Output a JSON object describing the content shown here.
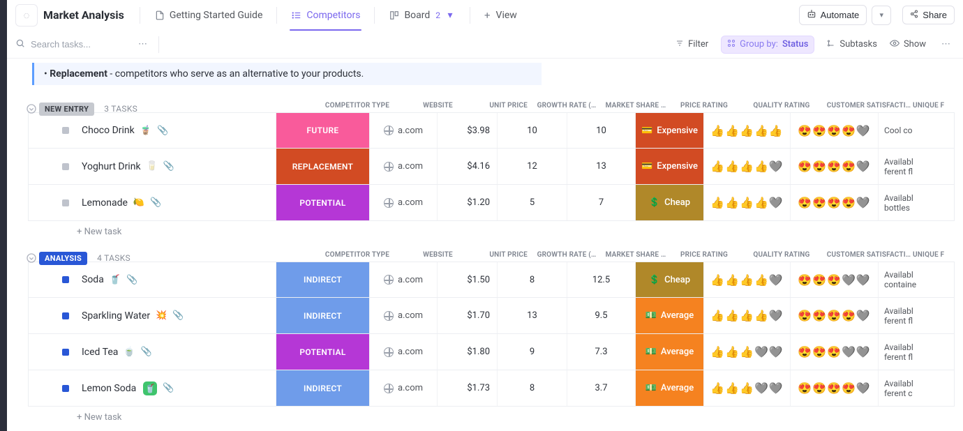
{
  "header": {
    "workspace": "Market Analysis",
    "tabs": [
      {
        "label": "Getting Started Guide"
      },
      {
        "label": "Competitors"
      },
      {
        "label": "Board",
        "count": "2"
      },
      {
        "label": "View"
      }
    ],
    "automate": "Automate",
    "share": "Share"
  },
  "toolbar": {
    "search_placeholder": "Search tasks...",
    "filter": "Filter",
    "group_by_label": "Group by:",
    "group_by_value": "Status",
    "subtasks": "Subtasks",
    "show": "Show"
  },
  "note": {
    "bold": "Replacement",
    "rest": " - competitors who serve as an alternative to your products."
  },
  "columns": [
    "COMPETITOR TYPE",
    "WEBSITE",
    "UNIT PRICE",
    "GROWTH RATE (…",
    "MARKET SHARE …",
    "PRICE RATING",
    "QUALITY RATING",
    "CUSTOMER SATISFACTI…",
    "UNIQUE F"
  ],
  "type_colors": {
    "FUTURE": "#f95b9b",
    "REPLACEMENT": "#d24b23",
    "POTENTIAL": "#b537d6",
    "INDIRECT": "#6f9cea"
  },
  "price_rating_colors": {
    "Expensive": "#d24b23",
    "Cheap": "#b08829",
    "Average": "#f58220"
  },
  "price_rating_icons": {
    "Expensive": "💳",
    "Cheap": "💲",
    "Average": "💵"
  },
  "new_task_label": "+ New task",
  "groups": [
    {
      "name": "NEW ENTRY",
      "pill_bg": "#c6c9cf",
      "pill_text": "#3c3f46",
      "status_color": "#bfc3cc",
      "task_count": "3 TASKS",
      "rows": [
        {
          "name": "Choco Drink",
          "emoji": "🧋",
          "has_clip": true,
          "type": "FUTURE",
          "website": "a.com",
          "unit_price": "$3.98",
          "growth": "10",
          "mshare": "10",
          "price_rating": "Expensive",
          "quality": "👍👍👍👍👍",
          "cust": "😍😍😍😍🩶",
          "unique": "Cool co"
        },
        {
          "name": "Yoghurt Drink",
          "emoji": "🥛",
          "has_clip": true,
          "type": "REPLACEMENT",
          "website": "a.com",
          "unit_price": "$4.16",
          "growth": "12",
          "mshare": "13",
          "price_rating": "Expensive",
          "quality": "👍👍👍👍🩶",
          "cust": "😍😍😍😍🩶",
          "unique": "Availabl\nferent fl"
        },
        {
          "name": "Lemonade",
          "emoji": "🍋",
          "has_clip": true,
          "type": "POTENTIAL",
          "website": "a.com",
          "unit_price": "$1.20",
          "growth": "5",
          "mshare": "7",
          "price_rating": "Cheap",
          "quality": "👍👍👍👍🩶",
          "cust": "😍😍😍😍🩶",
          "unique": "Availabl\nbottles"
        }
      ]
    },
    {
      "name": "ANALYSIS",
      "pill_bg": "#2957d6",
      "pill_text": "#ffffff",
      "status_color": "#2957d6",
      "task_count": "4 TASKS",
      "rows": [
        {
          "name": "Soda",
          "emoji": "🥤",
          "has_clip": true,
          "type": "INDIRECT",
          "website": "a.com",
          "unit_price": "$1.50",
          "growth": "8",
          "mshare": "12.5",
          "price_rating": "Cheap",
          "quality": "👍👍👍👍🩶",
          "cust": "😍😍😍🩶🩶",
          "unique": "Availabl\ncontaine"
        },
        {
          "name": "Sparkling Water",
          "emoji": "💥",
          "has_clip": true,
          "type": "INDIRECT",
          "website": "a.com",
          "unit_price": "$1.70",
          "growth": "13",
          "mshare": "9.5",
          "price_rating": "Average",
          "quality": "👍👍👍👍🩶",
          "cust": "😍😍😍😍🩶",
          "unique": "Availabl\nferent fl"
        },
        {
          "name": "Iced Tea",
          "emoji": "🍵",
          "has_clip": true,
          "type": "POTENTIAL",
          "website": "a.com",
          "unit_price": "$1.80",
          "growth": "9",
          "mshare": "7.3",
          "price_rating": "Average",
          "quality": "👍👍👍🩶🩶",
          "cust": "😍😍😍🩶🩶",
          "unique": "Availabl\nferent fl"
        },
        {
          "name": "Lemon Soda",
          "emoji_chip": "🥤",
          "has_clip": true,
          "type": "INDIRECT",
          "website": "a.com",
          "unit_price": "$1.73",
          "growth": "8",
          "mshare": "3.7",
          "price_rating": "Average",
          "quality": "👍👍👍🩶🩶",
          "cust": "😍😍😍😍🩶",
          "unique": "Availabl\nferent c"
        }
      ]
    }
  ]
}
